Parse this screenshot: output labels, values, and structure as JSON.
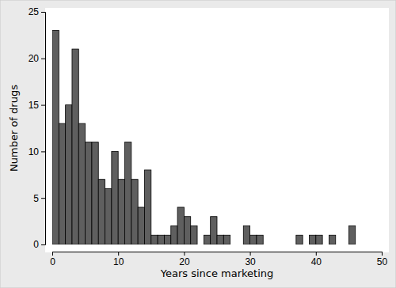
{
  "chart_data": {
    "type": "histogram",
    "x_label": "Years since marketing",
    "y_label": "Number of drugs",
    "bins": [
      0,
      1,
      2,
      3,
      4,
      5,
      6,
      7,
      8,
      9,
      10,
      11,
      12,
      13,
      14,
      15,
      16,
      17,
      18,
      19,
      20,
      21,
      22,
      23,
      24,
      25,
      26,
      27,
      28,
      29,
      30,
      31,
      32,
      33,
      34,
      35,
      36,
      37,
      38,
      39,
      40,
      41,
      42,
      43,
      44,
      45,
      46
    ],
    "values": [
      23,
      13,
      15,
      21,
      13,
      11,
      11,
      7,
      6,
      10,
      7,
      11,
      7,
      4,
      8,
      1,
      1,
      1,
      2,
      4,
      3,
      2,
      0,
      1,
      3,
      1,
      1,
      0,
      0,
      2,
      1,
      1,
      0,
      0,
      0,
      0,
      0,
      1,
      0,
      1,
      1,
      0,
      1,
      0,
      0,
      2
    ],
    "color": "#5f5f5f",
    "xlim": [
      0,
      50
    ],
    "xticks": [
      0,
      10,
      20,
      30,
      40,
      50
    ],
    "ylim": [
      0,
      25
    ],
    "yticks": [
      0,
      5,
      10,
      15,
      20,
      25
    ],
    "grid": false
  }
}
